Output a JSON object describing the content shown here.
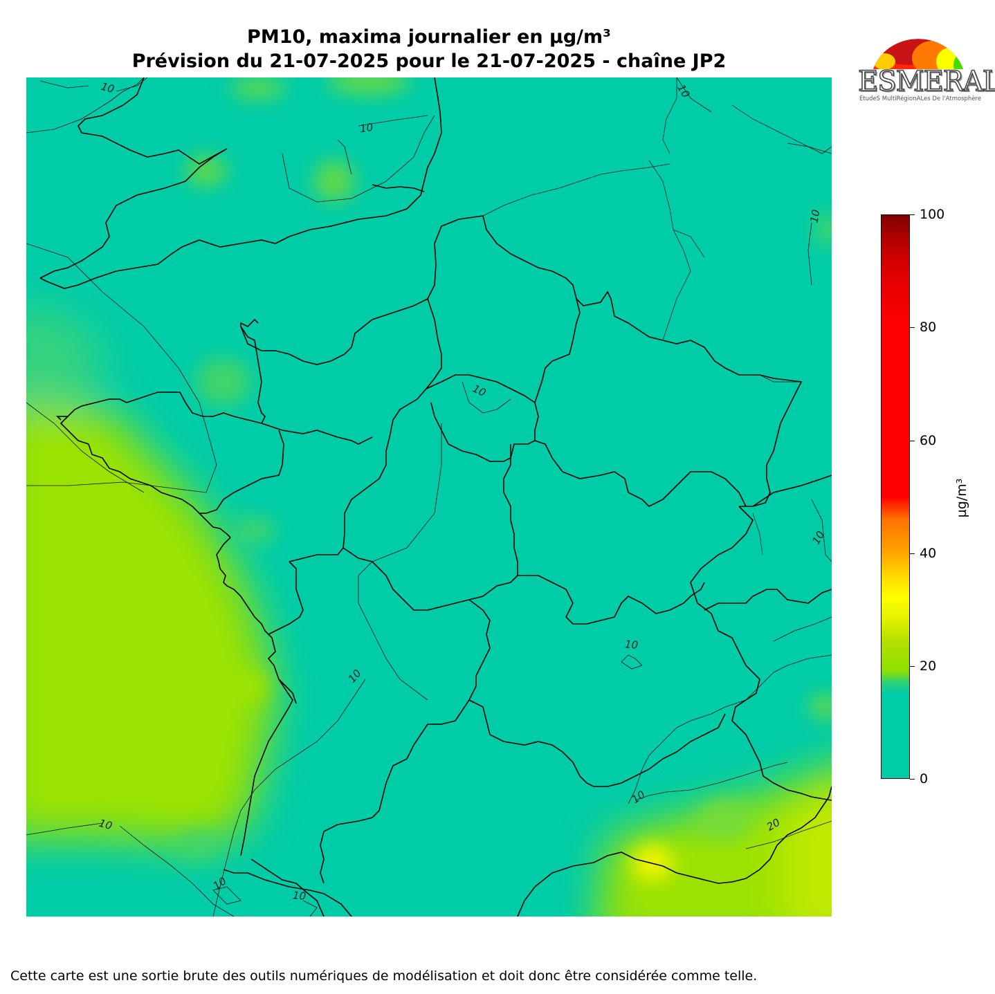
{
  "header": {
    "title_line1": "PM10, maxima journalier en µg/m³",
    "title_line2": "Prévision du 21-07-2025 pour le 21-07-2025 - chaîne JP2"
  },
  "logo": {
    "name": "ESMERALDA",
    "tagline": "ÉtudeS MultiRégionALes De l'Atmosphère"
  },
  "map": {
    "background_color": "#00cca8",
    "contour_labels": [
      "10",
      "10",
      "10",
      "10",
      "10",
      "10",
      "10",
      "10",
      "10",
      "10",
      "10",
      "10",
      "20"
    ]
  },
  "colorbar": {
    "unit": "µg/m³",
    "ticks": [
      "0",
      "20",
      "40",
      "60",
      "80",
      "100"
    ],
    "tick_values": [
      0,
      20,
      40,
      60,
      80,
      100
    ],
    "range": [
      0,
      100
    ],
    "colors": [
      "#00cca8",
      "#8ce000",
      "#ffff00",
      "#ffa500",
      "#ff0000",
      "#800000"
    ]
  },
  "footnote": "Cette carte est une sortie brute des outils numériques de modélisation et doit donc être considérée comme telle."
}
